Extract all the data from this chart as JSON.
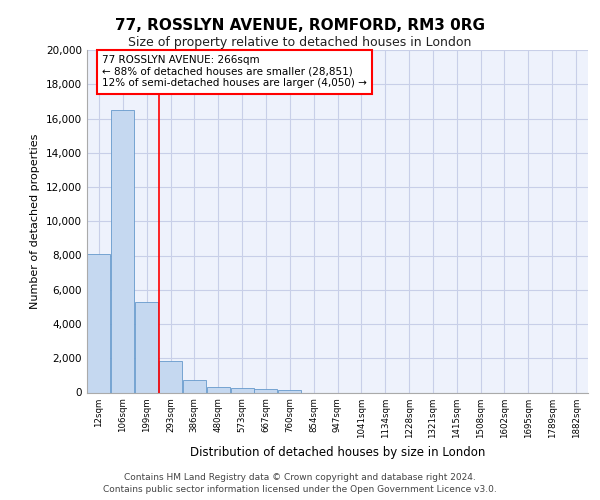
{
  "title": "77, ROSSLYN AVENUE, ROMFORD, RM3 0RG",
  "subtitle": "Size of property relative to detached houses in London",
  "xlabel": "Distribution of detached houses by size in London",
  "ylabel": "Number of detached properties",
  "categories": [
    "12sqm",
    "106sqm",
    "199sqm",
    "293sqm",
    "386sqm",
    "480sqm",
    "573sqm",
    "667sqm",
    "760sqm",
    "854sqm",
    "947sqm",
    "1041sqm",
    "1134sqm",
    "1228sqm",
    "1321sqm",
    "1415sqm",
    "1508sqm",
    "1602sqm",
    "1695sqm",
    "1789sqm",
    "1882sqm"
  ],
  "values": [
    8100,
    16500,
    5300,
    1850,
    750,
    330,
    270,
    200,
    170,
    0,
    0,
    0,
    0,
    0,
    0,
    0,
    0,
    0,
    0,
    0,
    0
  ],
  "bar_color": "#c5d8f0",
  "bar_edge_color": "#6699cc",
  "red_line_x": 2.5,
  "annotation_title": "77 ROSSLYN AVENUE: 266sqm",
  "annotation_line1": "← 88% of detached houses are smaller (28,851)",
  "annotation_line2": "12% of semi-detached houses are larger (4,050) →",
  "ylim": [
    0,
    20000
  ],
  "yticks": [
    0,
    2000,
    4000,
    6000,
    8000,
    10000,
    12000,
    14000,
    16000,
    18000,
    20000
  ],
  "footer1": "Contains HM Land Registry data © Crown copyright and database right 2024.",
  "footer2": "Contains public sector information licensed under the Open Government Licence v3.0.",
  "bg_color": "#eef2fc",
  "grid_color": "#c8cfe8"
}
